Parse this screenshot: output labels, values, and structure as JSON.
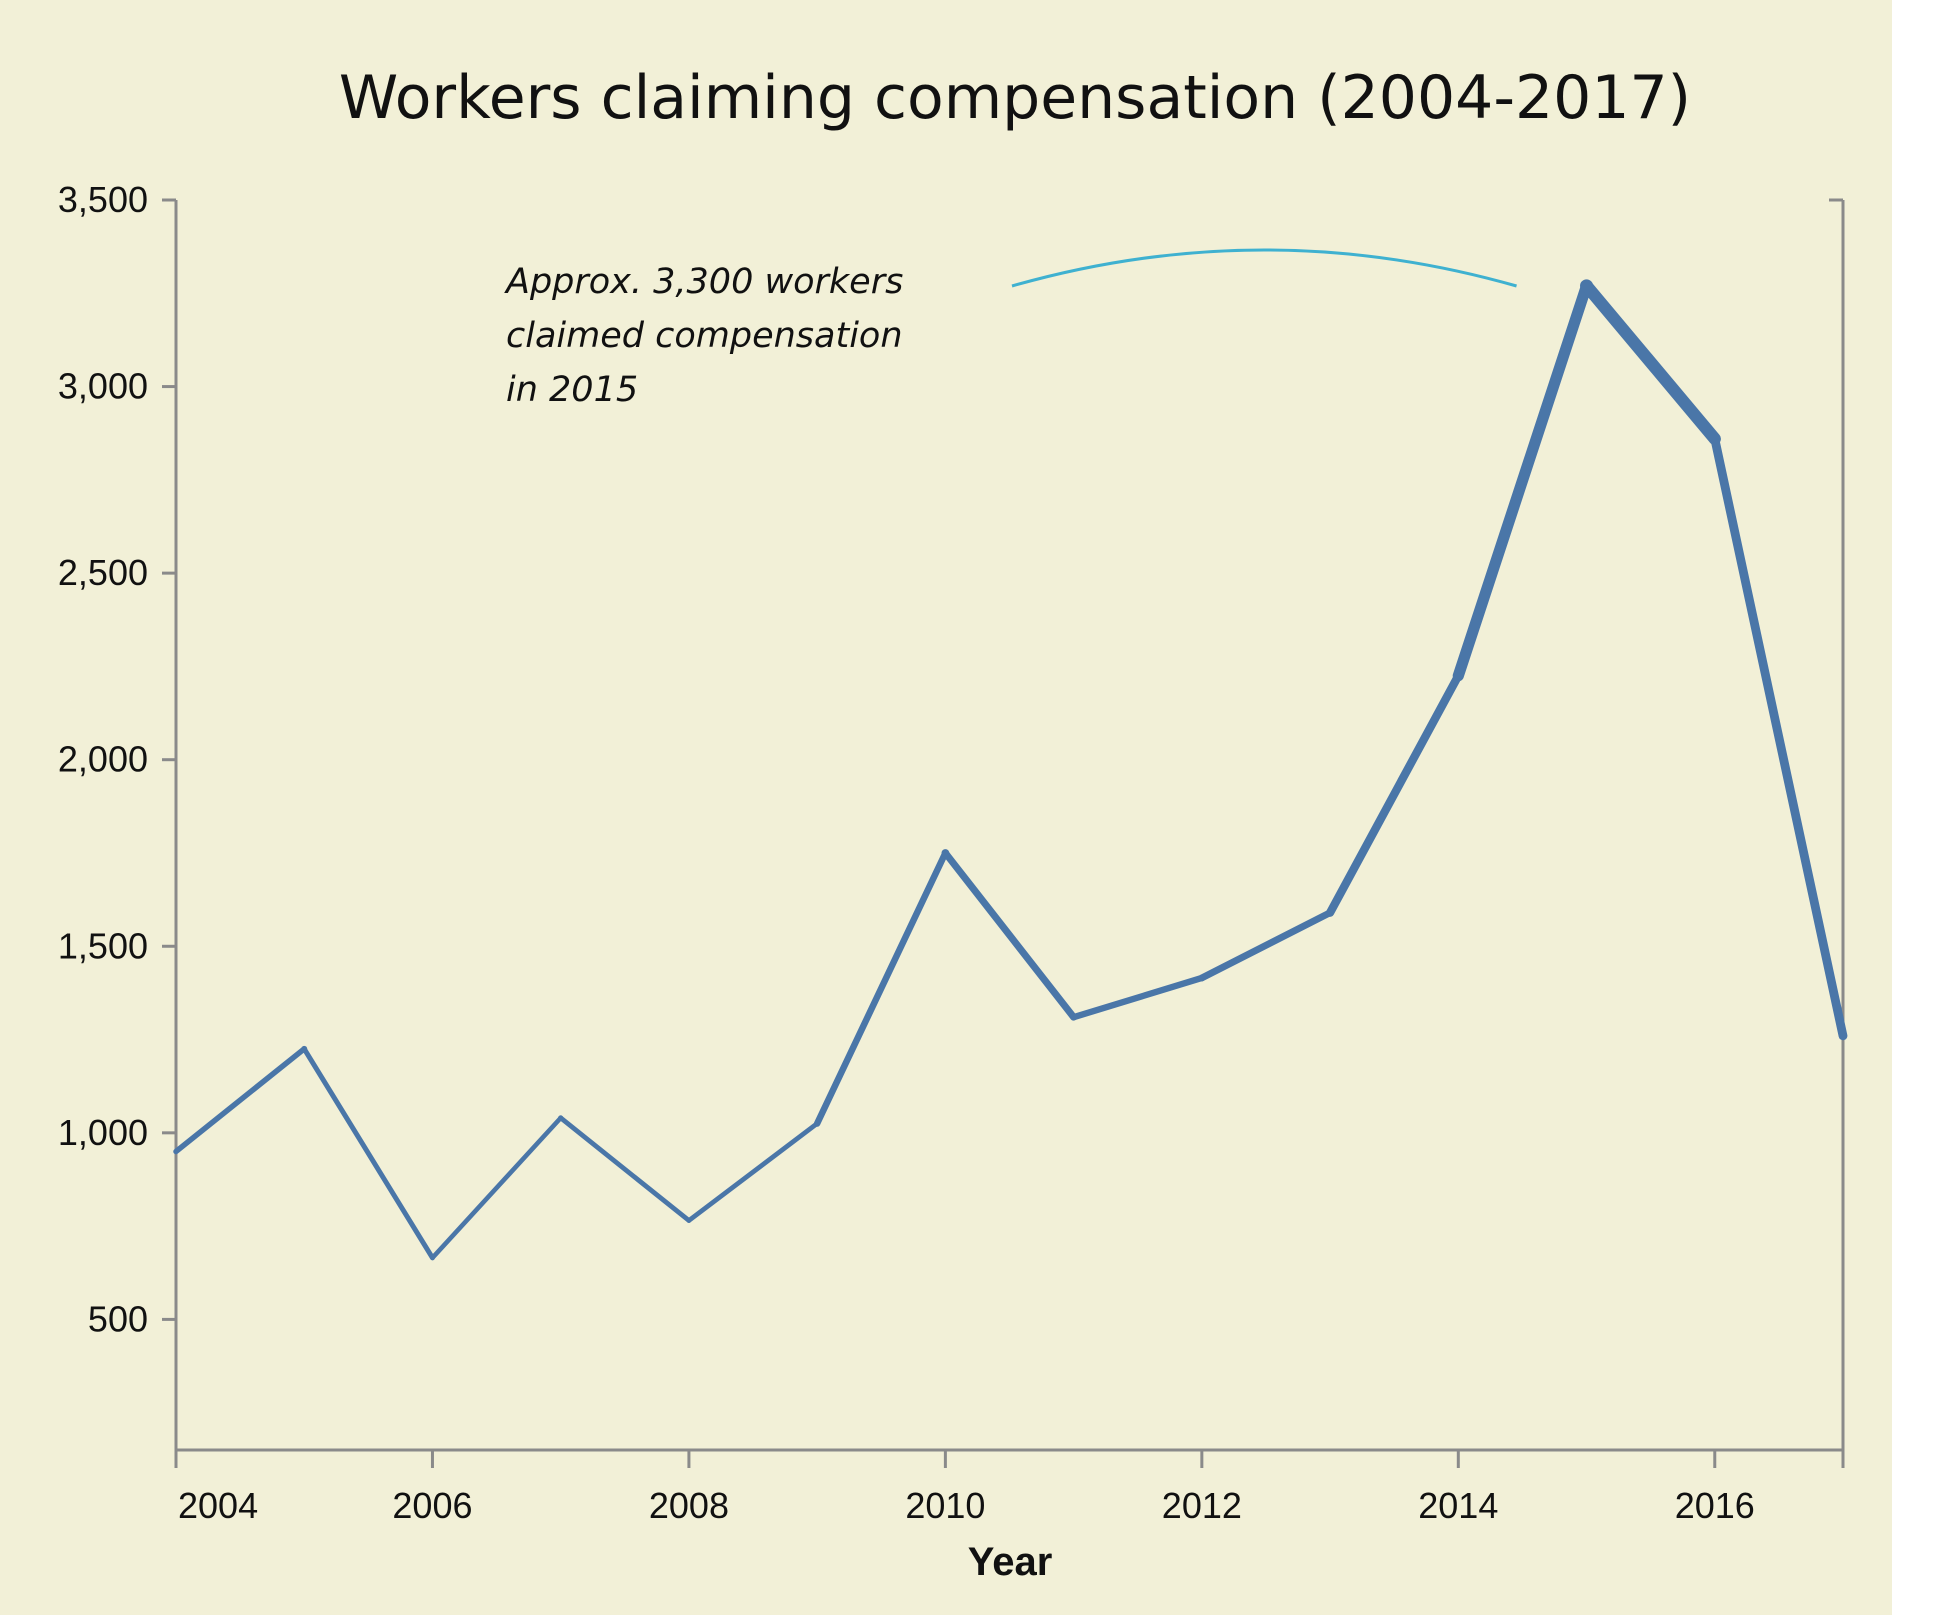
{
  "chart_data": {
    "type": "line",
    "title": "Workers claiming compensation (2004-2017)",
    "xlabel": "Year",
    "ylabel": "",
    "x": [
      2004,
      2005,
      2006,
      2007,
      2008,
      2009,
      2010,
      2011,
      2012,
      2013,
      2014,
      2015,
      2016,
      2017
    ],
    "series": [
      {
        "name": "",
        "values": [
          950,
          1225,
          665,
          1040,
          765,
          1025,
          1750,
          1310,
          1415,
          1590,
          2225,
          3270,
          2860,
          1260
        ]
      }
    ],
    "xlim": [
      2004,
      2017
    ],
    "ylim": [
      150,
      3500
    ],
    "x_ticks": [
      2004,
      2006,
      2008,
      2010,
      2012,
      2014,
      2016
    ],
    "x_tick_labels": [
      "2004",
      "2006",
      "2008",
      "2010",
      "2012",
      "2014",
      "2016"
    ],
    "y_ticks": [
      500,
      1000,
      1500,
      2000,
      2500,
      3000,
      3500
    ],
    "y_tick_labels": [
      "500",
      "1,000",
      "1,500",
      "2,000",
      "2,500",
      "3,000",
      "3,500"
    ],
    "grid": false,
    "annotation": {
      "lines": [
        "Approx. 3,300 workers",
        "claimed compensation",
        "in 2015"
      ],
      "x": 2015,
      "y": 3300
    },
    "colors": {
      "background": "#f2f0d7",
      "line": "#4a76a8",
      "annotation_arc": "#3fb1d0",
      "axis": "#8a8a8a",
      "text": "#111111"
    }
  }
}
